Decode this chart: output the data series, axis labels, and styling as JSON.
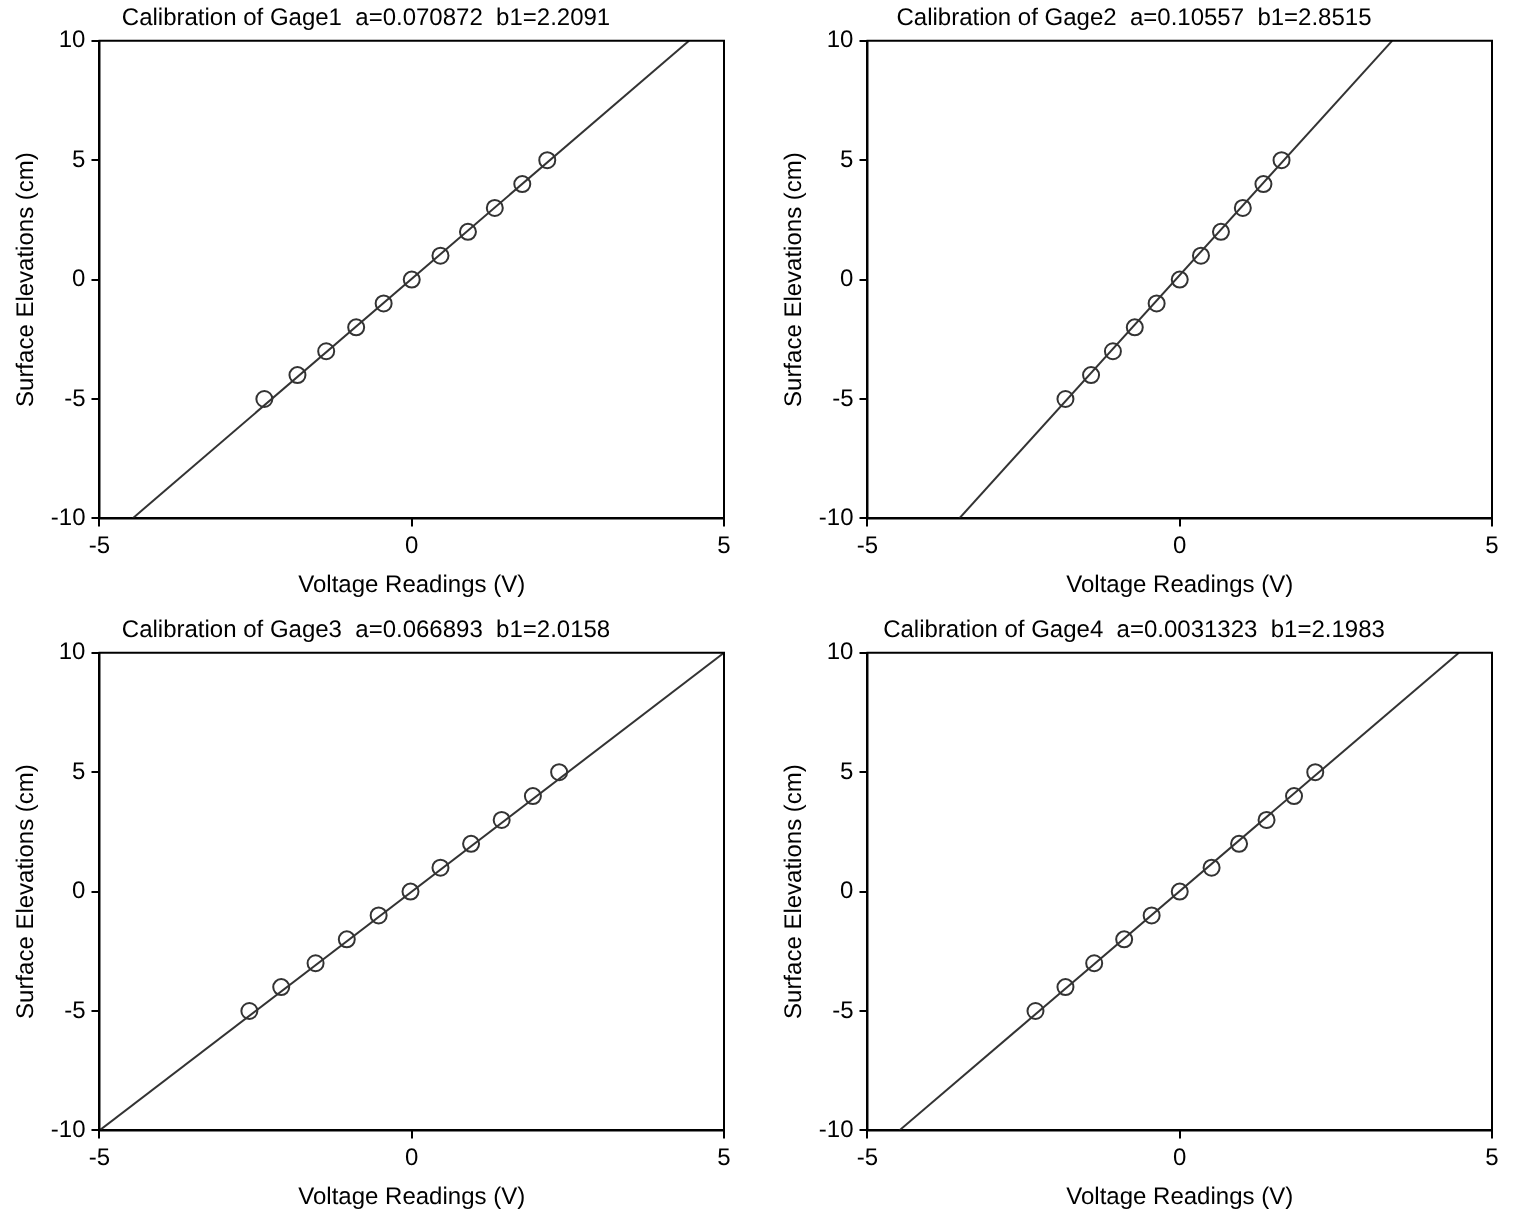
{
  "chart_data": [
    {
      "type": "scatter",
      "title": "Calibration of Gage1  a=0.070872  b1=2.2091",
      "xlabel": "Voltage Readings (V)",
      "ylabel": "Surface Elevations (cm)",
      "xlim": [
        -5,
        5
      ],
      "xticks": [
        -5,
        0,
        5
      ],
      "ylim": [
        -10,
        10
      ],
      "yticks": [
        -10,
        -5,
        0,
        5,
        10
      ],
      "marker": "circle",
      "series": [
        {
          "color": "#333333",
          "x": [
            -2.36,
            -1.83,
            -1.37,
            -0.89,
            -0.45,
            0,
            0.46,
            0.9,
            1.33,
            1.77,
            2.17
          ],
          "values": [
            -5,
            -4,
            -3,
            -2,
            -1,
            0,
            1,
            2,
            3,
            4,
            5
          ]
        },
        {
          "type": "line",
          "color": "#333333",
          "marker": "none",
          "x": [
            -4.47,
            4.44
          ],
          "values": [
            -10,
            10
          ]
        }
      ]
    },
    {
      "type": "scatter",
      "title": "Calibration of Gage2  a=0.10557  b1=2.8515",
      "xlabel": "Voltage Readings (V)",
      "ylabel": "Surface Elevations (cm)",
      "xlim": [
        -5,
        5
      ],
      "xticks": [
        -5,
        0,
        5
      ],
      "ylim": [
        -10,
        10
      ],
      "yticks": [
        -10,
        -5,
        0,
        5,
        10
      ],
      "marker": "circle",
      "series": [
        {
          "color": "#333333",
          "x": [
            -1.83,
            -1.42,
            -1.07,
            -0.72,
            -0.37,
            0,
            0.34,
            0.66,
            1.01,
            1.34,
            1.63
          ],
          "values": [
            -5,
            -4,
            -3,
            -2,
            -1,
            0,
            1,
            2,
            3,
            4,
            5
          ]
        },
        {
          "type": "line",
          "color": "#333333",
          "marker": "none",
          "x": [
            -3.53,
            3.4
          ],
          "values": [
            -10,
            10
          ]
        }
      ]
    },
    {
      "type": "scatter",
      "title": "Calibration of Gage3  a=0.066893  b1=2.0158",
      "xlabel": "Voltage Readings (V)",
      "ylabel": "Surface Elevations (cm)",
      "xlim": [
        -5,
        5
      ],
      "xticks": [
        -5,
        0,
        5
      ],
      "ylim": [
        -10,
        10
      ],
      "yticks": [
        -10,
        -5,
        0,
        5,
        10
      ],
      "marker": "circle",
      "series": [
        {
          "color": "#333333",
          "x": [
            -2.6,
            -2.09,
            -1.54,
            -1.04,
            -0.53,
            -0.02,
            0.46,
            0.95,
            1.44,
            1.94,
            2.36
          ],
          "values": [
            -5,
            -4,
            -3,
            -2,
            -1,
            0,
            1,
            2,
            3,
            4,
            5
          ]
        },
        {
          "type": "line",
          "color": "#333333",
          "marker": "none",
          "x": [
            -5,
            5
          ],
          "values": [
            -10,
            10
          ]
        }
      ]
    },
    {
      "type": "scatter",
      "title": "Calibration of Gage4  a=0.0031323  b1=2.1983",
      "xlabel": "Voltage Readings (V)",
      "ylabel": "Surface Elevations (cm)",
      "xlim": [
        -5,
        5
      ],
      "xticks": [
        -5,
        0,
        5
      ],
      "ylim": [
        -10,
        10
      ],
      "yticks": [
        -10,
        -5,
        0,
        5,
        10
      ],
      "marker": "circle",
      "series": [
        {
          "color": "#333333",
          "x": [
            -2.31,
            -1.83,
            -1.37,
            -0.89,
            -0.45,
            0,
            0.51,
            0.95,
            1.39,
            1.83,
            2.17
          ],
          "values": [
            -5,
            -4,
            -3,
            -2,
            -1,
            0,
            1,
            2,
            3,
            4,
            5
          ]
        },
        {
          "type": "line",
          "color": "#333333",
          "marker": "none",
          "x": [
            -4.49,
            4.47
          ],
          "values": [
            -10,
            10
          ]
        }
      ]
    }
  ]
}
